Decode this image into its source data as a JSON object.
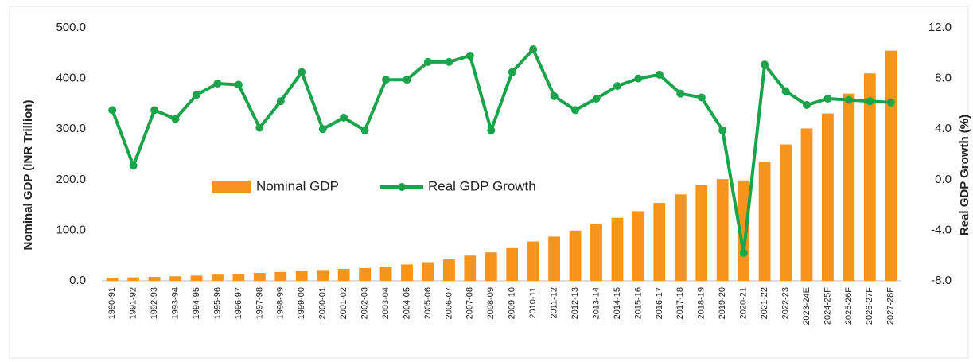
{
  "chart_data": {
    "type": "bar_line",
    "ylabel": "Nominal GDP (INR Trillion)",
    "y2label": "Real GDP Growth (%)",
    "categories": [
      "1990-91",
      "1991-92",
      "1992-93",
      "1993-94",
      "1994-95",
      "1995-96",
      "1996-97",
      "1997-98",
      "1998-99",
      "1999-00",
      "2000-01",
      "2001-02",
      "2002-03",
      "2003-04",
      "2004-05",
      "2005-06",
      "2006-07",
      "2007-08",
      "2008-09",
      "2009-10",
      "2010-11",
      "2011-12",
      "2012-13",
      "2013-14",
      "2014-15",
      "2015-16",
      "2016-17",
      "2017-18",
      "2018-19",
      "2019-20",
      "2020-21",
      "2021-22",
      "2022-23",
      "2023-24E",
      "2024-25F",
      "2025-26F",
      "2026-27F",
      "2027-28F"
    ],
    "series": [
      {
        "name": "Nominal GDP",
        "color": "#f7941d",
        "values": [
          5.9,
          6.8,
          7.8,
          9,
          10.5,
          12.3,
          14.2,
          15.7,
          17.6,
          20,
          21.5,
          23.5,
          25.3,
          28.4,
          32.4,
          36.9,
          42.9,
          49.9,
          56.3,
          64.8,
          77.8,
          87.4,
          99.4,
          112.3,
          124.7,
          137.7,
          153.9,
          170.9,
          188.9,
          201,
          198.5,
          235,
          269.5,
          301.2,
          331,
          370,
          410,
          455
        ]
      },
      {
        "name": "Real GDP Growth",
        "color": "#1aa34a",
        "axis": "y2",
        "values": [
          5.5,
          1.1,
          5.5,
          4.8,
          6.7,
          7.6,
          7.5,
          4.1,
          6.2,
          8.5,
          4.0,
          4.9,
          3.9,
          7.9,
          7.9,
          9.3,
          9.3,
          9.8,
          3.9,
          8.5,
          10.3,
          6.6,
          5.5,
          6.4,
          7.4,
          8.0,
          8.3,
          6.8,
          6.5,
          3.9,
          -5.8,
          9.1,
          7.0,
          5.9,
          6.4,
          6.3,
          6.2,
          6.1
        ]
      }
    ],
    "ylim": [
      0,
      500
    ],
    "yticks": [
      {
        "value": 0,
        "label": "0.0"
      },
      {
        "value": 100,
        "label": "100.0"
      },
      {
        "value": 200,
        "label": "200.0"
      },
      {
        "value": 300,
        "label": "300.0"
      },
      {
        "value": 400,
        "label": "400.0"
      },
      {
        "value": 500,
        "label": "500.0"
      }
    ],
    "y2lim": [
      -8,
      12
    ],
    "y2ticks": [
      {
        "value": -8,
        "label": "-8.0"
      },
      {
        "value": -4,
        "label": "-4.0"
      },
      {
        "value": 0,
        "label": "0.0"
      },
      {
        "value": 4,
        "label": "4.0"
      },
      {
        "value": 8,
        "label": "8.0"
      },
      {
        "value": 12,
        "label": "12.0"
      }
    ],
    "grid": false,
    "legend": "center"
  }
}
